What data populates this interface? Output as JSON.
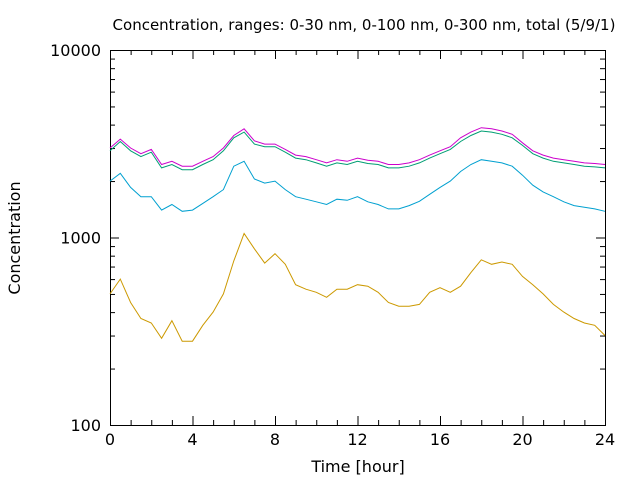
{
  "chart_data": {
    "type": "line",
    "title": "Concentration, ranges: 0-30 nm, 0-100 nm, 0-300 nm, total (5/9/1)",
    "xlabel": "Time [hour]",
    "ylabel": "Concentration",
    "xlim": [
      0,
      24
    ],
    "ylim": [
      100,
      10000
    ],
    "yscale": "log",
    "grid": false,
    "legend": "none",
    "x_ticks": [
      0,
      4,
      8,
      12,
      16,
      20,
      24
    ],
    "x_tick_labels": [
      "0",
      "4",
      "8",
      "12",
      "16",
      "20",
      "24"
    ],
    "y_ticks": [
      100,
      1000,
      10000
    ],
    "y_tick_labels": [
      "100",
      "1000",
      "10000"
    ],
    "x": [
      0,
      0.5,
      1,
      1.5,
      2,
      2.5,
      3,
      3.5,
      4,
      4.5,
      5,
      5.5,
      6,
      6.5,
      7,
      7.5,
      8,
      8.5,
      9,
      9.5,
      10,
      10.5,
      11,
      11.5,
      12,
      12.5,
      13,
      13.5,
      14,
      14.5,
      15,
      15.5,
      16,
      16.5,
      17,
      17.5,
      18,
      18.5,
      19,
      19.5,
      20,
      20.5,
      21,
      21.5,
      22,
      22.5,
      23,
      23.5,
      24
    ],
    "series": [
      {
        "color": "#cc9900",
        "values": [
          500,
          600,
          450,
          370,
          350,
          290,
          360,
          280,
          280,
          340,
          400,
          500,
          750,
          1050,
          870,
          730,
          820,
          720,
          560,
          530,
          510,
          480,
          530,
          530,
          560,
          550,
          510,
          450,
          430,
          430,
          440,
          510,
          540,
          510,
          550,
          650,
          760,
          720,
          740,
          720,
          620,
          560,
          500,
          440,
          400,
          370,
          350,
          340,
          300
        ]
      },
      {
        "color": "#00a0d0",
        "values": [
          2000,
          2200,
          1850,
          1650,
          1650,
          1400,
          1500,
          1380,
          1400,
          1520,
          1650,
          1800,
          2400,
          2550,
          2050,
          1950,
          2000,
          1800,
          1650,
          1600,
          1550,
          1500,
          1600,
          1580,
          1650,
          1550,
          1500,
          1420,
          1420,
          1480,
          1560,
          1700,
          1850,
          2000,
          2250,
          2450,
          2600,
          2550,
          2500,
          2400,
          2150,
          1900,
          1750,
          1650,
          1550,
          1480,
          1450,
          1420,
          1380
        ]
      },
      {
        "color": "#009e73",
        "values": [
          2900,
          3250,
          2900,
          2700,
          2850,
          2350,
          2450,
          2300,
          2300,
          2450,
          2600,
          2900,
          3400,
          3650,
          3150,
          3050,
          3050,
          2850,
          2650,
          2600,
          2500,
          2400,
          2500,
          2450,
          2550,
          2480,
          2450,
          2350,
          2350,
          2400,
          2500,
          2650,
          2800,
          2950,
          3250,
          3500,
          3700,
          3650,
          3550,
          3400,
          3100,
          2800,
          2650,
          2550,
          2500,
          2450,
          2400,
          2380,
          2350
        ]
      },
      {
        "color": "#cc00cc",
        "values": [
          3000,
          3350,
          3000,
          2800,
          2950,
          2450,
          2550,
          2400,
          2400,
          2550,
          2700,
          3000,
          3500,
          3800,
          3280,
          3150,
          3150,
          2950,
          2750,
          2700,
          2600,
          2500,
          2600,
          2550,
          2650,
          2580,
          2550,
          2450,
          2450,
          2500,
          2600,
          2750,
          2900,
          3050,
          3400,
          3650,
          3850,
          3800,
          3700,
          3550,
          3200,
          2900,
          2750,
          2650,
          2600,
          2550,
          2500,
          2480,
          2450
        ]
      }
    ]
  }
}
